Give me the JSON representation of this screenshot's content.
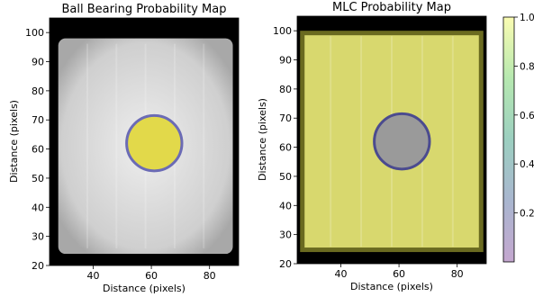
{
  "chart_data": [
    {
      "type": "heatmap",
      "title": "Ball Bearing Probability Map",
      "xlabel": "Distance (pixels)",
      "ylabel": "Distance (pixels)",
      "xlim": [
        25,
        90
      ],
      "ylim": [
        20,
        105
      ],
      "xticks": [
        40,
        60,
        80
      ],
      "yticks": [
        20,
        30,
        40,
        50,
        60,
        70,
        80,
        90,
        100
      ],
      "field_region": {
        "x": [
          28,
          88
        ],
        "y": [
          24,
          98
        ]
      },
      "field_intensity": 0.8,
      "bb_circle": {
        "center": [
          61,
          62
        ],
        "radius": 9.5,
        "probability": 1.0
      },
      "colors": {
        "background": "#000000",
        "field": "#d9d9d9",
        "bb_fill": "#e2d94a",
        "bb_edge": "#6b6bb5"
      }
    },
    {
      "type": "heatmap",
      "title": "MLC Probability Map",
      "xlabel": "Distance (pixels)",
      "ylabel": "Distance (pixels)",
      "xlim": [
        25,
        90
      ],
      "ylim": [
        20,
        105
      ],
      "xticks": [
        40,
        60,
        80
      ],
      "yticks": [
        20,
        30,
        40,
        50,
        60,
        70,
        80,
        90,
        100
      ],
      "field_region": {
        "x": [
          26,
          89
        ],
        "y": [
          24,
          100
        ]
      },
      "field_probability": 1.0,
      "bb_circle": {
        "center": [
          61,
          62
        ],
        "radius": 9.5,
        "probability": 0.5
      },
      "colors": {
        "background": "#000000",
        "field": "#d8d86e",
        "field_edge": "#6a6a20",
        "bb_fill": "#9a9a9a",
        "bb_edge": "#4b4b8f"
      },
      "colorbar": {
        "ticks": [
          "0.2",
          "0.4",
          "0.6",
          "0.8",
          "1.0"
        ],
        "range": [
          0,
          1
        ],
        "colors": [
          "#c4a7cf",
          "#a9b6cf",
          "#9ccfc0",
          "#b6e8b0",
          "#fbfcb2"
        ]
      }
    }
  ]
}
